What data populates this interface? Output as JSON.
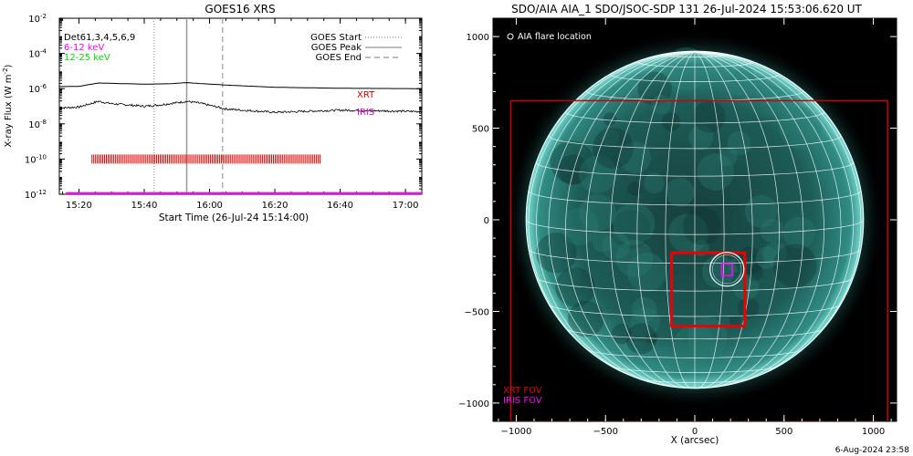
{
  "footer": {
    "timestamp": "6-Aug-2024 23:58"
  },
  "chart_data": [
    {
      "type": "line",
      "title": "GOES16 XRS",
      "xlabel": "Start Time (26-Jul-24 15:14:00)",
      "ylabel": "X-ray Flux (W m",
      "ylabel_sup": "-2",
      "ylabel_close": ")",
      "log_y": true,
      "grid": false,
      "x_axis_unit": "time_HH:MM",
      "xlim": [
        "15:14",
        "17:05"
      ],
      "ylim": [
        1e-12,
        0.01
      ],
      "x_ticks": [
        "15:20",
        "15:40",
        "16:00",
        "16:20",
        "16:40",
        "17:00"
      ],
      "y_ticks": [
        {
          "value": 1e-12,
          "label": "10",
          "exp": "-12"
        },
        {
          "value": 1e-10,
          "label": "10",
          "exp": "-10"
        },
        {
          "value": 1e-08,
          "label": "10",
          "exp": "-8"
        },
        {
          "value": 1e-06,
          "label": "10",
          "exp": "-6"
        },
        {
          "value": 0.0001,
          "label": "10",
          "exp": "-4"
        },
        {
          "value": 0.01,
          "label": "10",
          "exp": "-2"
        }
      ],
      "det_label": "Det61,3,4,5,6,9",
      "energy_labels": [
        {
          "text": "6-12 keV",
          "color": "#ff00ff"
        },
        {
          "text": "12-25 keV",
          "color": "#00dd00"
        }
      ],
      "legend": {
        "placement": "top-right",
        "entries": [
          {
            "name": "GOES Start",
            "style": "dotted"
          },
          {
            "name": "GOES Peak",
            "style": "solid"
          },
          {
            "name": "GOES End",
            "style": "dashed"
          }
        ]
      },
      "annotations": [
        {
          "text": "XRT",
          "color": "#cc0000"
        },
        {
          "text": "IRIS",
          "color": "#dd00dd"
        }
      ],
      "event_lines": {
        "start": "15:43",
        "peak": "15:53",
        "end": "16:04"
      },
      "series": [
        {
          "color": "#000000",
          "x": [
            "15:14",
            "15:20",
            "15:26",
            "15:30",
            "15:40",
            "15:48",
            "15:53",
            "15:58",
            "16:05",
            "16:20",
            "16:40",
            "17:05"
          ],
          "y": [
            1.3e-06,
            1.35e-06,
            2.1e-06,
            2e-06,
            1.8e-06,
            1.9e-06,
            2.2e-06,
            1.9e-06,
            1.6e-06,
            1.2e-06,
            1.05e-06,
            1e-06
          ]
        },
        {
          "color": "#000000",
          "x": [
            "15:14",
            "15:20",
            "15:26",
            "15:30",
            "15:40",
            "15:45",
            "15:50",
            "15:53",
            "15:57",
            "16:05",
            "16:20",
            "16:40",
            "17:05"
          ],
          "y": [
            8e-08,
            9e-08,
            1.9e-07,
            1.4e-07,
            1e-07,
            1.2e-07,
            1.6e-07,
            1.9e-07,
            1.5e-07,
            7e-08,
            4.5e-08,
            6e-08,
            5e-08
          ]
        }
      ],
      "xrt_coverage": {
        "start": "15:24",
        "end": "16:34",
        "value": 1e-10,
        "color": "#dd0000"
      },
      "iris_coverage": {
        "start": "15:16",
        "end": "17:05",
        "value": 1e-12,
        "color": "#ff00ff"
      }
    },
    {
      "type": "scatter",
      "title": "SDO/AIA AIA_1 SDO/JSOC-SDP 131 26-Jul-2024 15:53:06.620 UT",
      "xlabel": "X (arcsec)",
      "ylabel": "",
      "xlim": [
        -1130,
        1130
      ],
      "ylim": [
        -1100,
        1100
      ],
      "x_ticks": [
        -1000,
        -500,
        0,
        500,
        1000
      ],
      "y_ticks": [
        -1000,
        -500,
        0,
        500,
        1000
      ],
      "solar_radius_arcsec": 945,
      "background_color": "#000000",
      "disk_color": "#1f6a64",
      "grid_color": "#ffffff",
      "legend_text": "AIA flare location",
      "flare_location": {
        "x": 180,
        "y": -270
      },
      "flare_circle_radius": 95,
      "fov_boxes": [
        {
          "name": "XRT FOV (full)",
          "x": [
            -1030,
            1080
          ],
          "y": [
            -1100,
            650
          ],
          "color": "#cc0000"
        },
        {
          "name": "XRT FOV (zoom)",
          "x": [
            -130,
            280
          ],
          "y": [
            -580,
            -180
          ],
          "color": "#ee0000"
        },
        {
          "name": "IRIS FOV",
          "x": [
            150,
            210
          ],
          "y": [
            -305,
            -240
          ],
          "color": "#ff00ff"
        }
      ],
      "fov_labels": [
        {
          "text": "XRT FOV",
          "color": "#ee0000"
        },
        {
          "text": "IRIS FOV",
          "color": "#ff00ff"
        }
      ]
    }
  ]
}
